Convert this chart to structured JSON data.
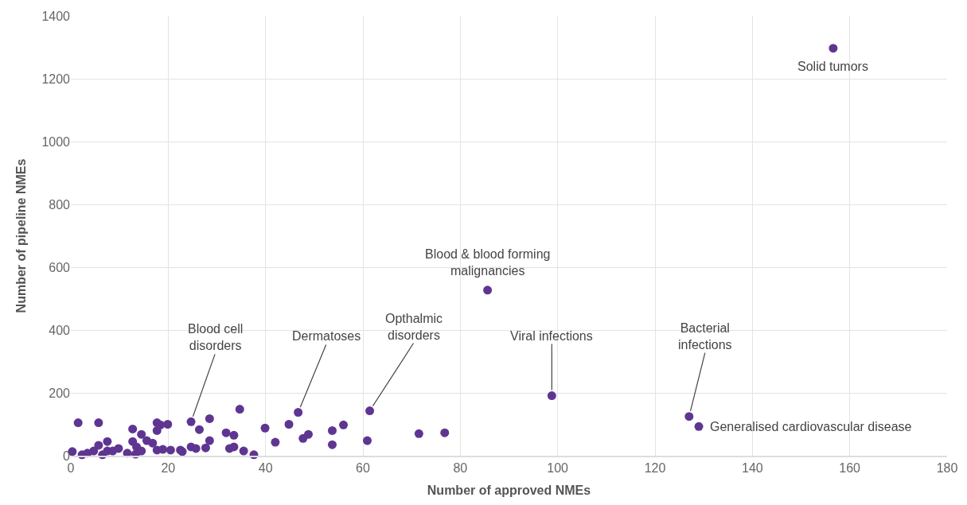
{
  "chart_data": {
    "type": "scatter",
    "xlabel": "Number of approved NMEs",
    "ylabel": "Number of pipeline NMEs",
    "x": [
      0.3,
      1.5,
      2.3,
      3.4,
      4.7,
      5.7,
      5.7,
      6.5,
      7.5,
      7.5,
      8.6,
      9.8,
      11.6,
      12.7,
      12.7,
      13.3,
      13.5,
      14.5,
      14.5,
      15.6,
      16.8,
      17.7,
      17.7,
      17.7,
      18.4,
      18.9,
      19.9,
      20.5,
      22.5,
      22.9,
      24.7,
      24.7,
      25.7,
      26.4,
      27.7,
      28.5,
      28.5,
      31.9,
      32.6,
      33.5,
      33.5,
      34.7,
      35.5,
      37.6,
      39.9,
      42,
      44.8,
      46.7,
      47.7,
      48.8,
      53.7,
      53.7,
      56,
      60.9,
      61.4,
      71.5,
      76.8,
      85.6,
      98.8,
      127,
      129,
      156.6
    ],
    "series": [
      {
        "color": "#5f3592",
        "values": [
          13,
          105,
          3,
          8,
          15,
          105,
          33,
          3,
          45,
          15,
          15,
          23,
          8,
          45,
          85,
          5,
          28,
          68,
          15,
          48,
          40,
          105,
          18,
          80,
          98,
          20,
          100,
          18,
          18,
          13,
          108,
          28,
          23,
          83,
          25,
          48,
          118,
          73,
          23,
          65,
          28,
          148,
          15,
          3,
          88,
          43,
          100,
          138,
          55,
          68,
          80,
          35,
          98,
          48,
          143,
          70,
          73,
          527,
          191,
          125,
          93,
          1297
        ]
      }
    ],
    "xlim": [
      0,
      180
    ],
    "xticks": [
      0,
      20,
      40,
      60,
      80,
      100,
      120,
      140,
      160,
      180
    ],
    "ylim": [
      0,
      1400
    ],
    "yticks": [
      0,
      200,
      400,
      600,
      800,
      1000,
      1200,
      1400
    ],
    "grid": true,
    "marker": "circle",
    "annotations": [
      {
        "text": "Solid tumors",
        "x": 156.6,
        "y": 1297
      },
      {
        "text": "Blood & blood forming\nmalignancies",
        "x": 85.6,
        "y": 527
      },
      {
        "text": "Blood cell\ndisorders",
        "x": 24.7,
        "y": 108
      },
      {
        "text": "Dermatoses",
        "x": 46.7,
        "y": 138
      },
      {
        "text": "Opthalmic\ndisorders",
        "x": 61.4,
        "y": 143
      },
      {
        "text": "Viral infections",
        "x": 98.8,
        "y": 191
      },
      {
        "text": "Bacterial\ninfections",
        "x": 127,
        "y": 125
      },
      {
        "text": "Generalised cardiovascular disease",
        "x": 129,
        "y": 93
      }
    ]
  }
}
